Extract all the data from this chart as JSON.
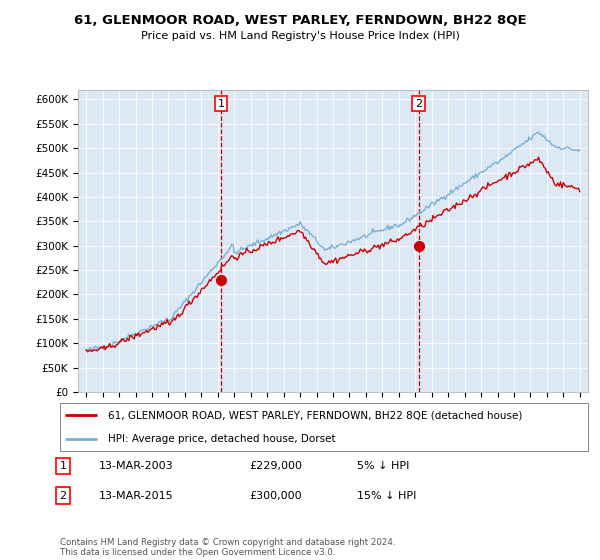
{
  "title": "61, GLENMOOR ROAD, WEST PARLEY, FERNDOWN, BH22 8QE",
  "subtitle": "Price paid vs. HM Land Registry's House Price Index (HPI)",
  "background_color": "#dce9f5",
  "plot_bg_color": "#dce9f5",
  "outer_bg_color": "#ffffff",
  "hpi_color": "#7bafd4",
  "price_color": "#cc0000",
  "marker_color": "#cc0000",
  "dashed_line_color": "#cc0000",
  "ylim": [
    0,
    620000
  ],
  "yticks": [
    0,
    50000,
    100000,
    150000,
    200000,
    250000,
    300000,
    350000,
    400000,
    450000,
    500000,
    550000,
    600000
  ],
  "xlim_start": 1994.5,
  "xlim_end": 2025.5,
  "transaction1_x": 2003.2,
  "transaction1_y": 229000,
  "transaction2_x": 2015.2,
  "transaction2_y": 300000,
  "legend_label_red": "61, GLENMOOR ROAD, WEST PARLEY, FERNDOWN, BH22 8QE (detached house)",
  "legend_label_blue": "HPI: Average price, detached house, Dorset",
  "annotation1_label": "1",
  "annotation1_date": "13-MAR-2003",
  "annotation1_price": "£229,000",
  "annotation1_pct": "5% ↓ HPI",
  "annotation2_label": "2",
  "annotation2_date": "13-MAR-2015",
  "annotation2_price": "£300,000",
  "annotation2_pct": "15% ↓ HPI",
  "footer": "Contains HM Land Registry data © Crown copyright and database right 2024.\nThis data is licensed under the Open Government Licence v3.0."
}
